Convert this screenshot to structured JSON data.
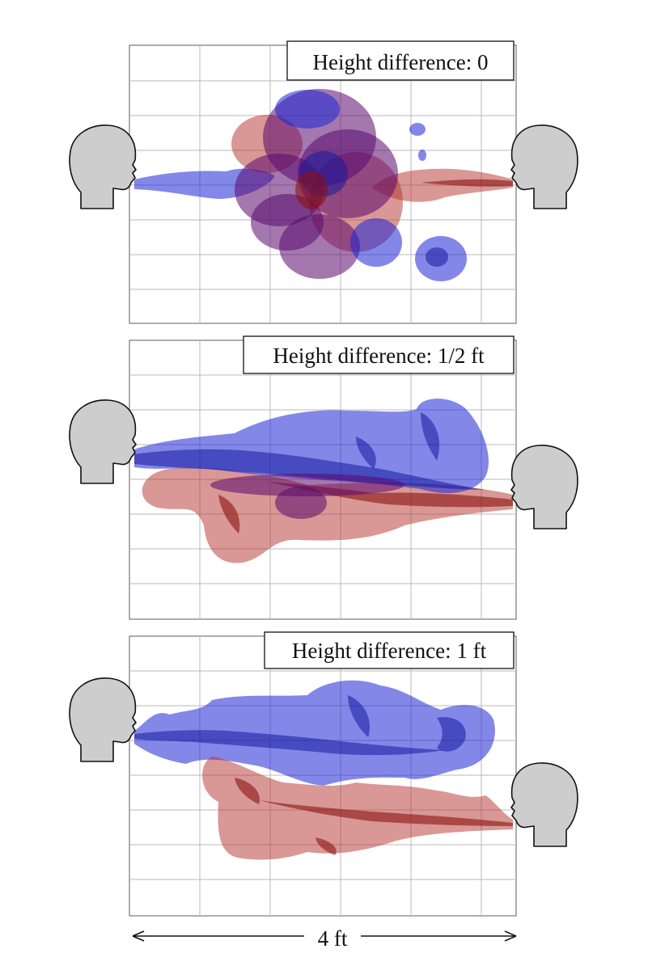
{
  "panels": [
    {
      "label": "Height difference: 0"
    },
    {
      "label": "Height difference: 1/2 ft"
    },
    {
      "label": "Height difference: 1 ft"
    }
  ],
  "scale_label": "4 ft",
  "colors": {
    "left_person_jet": "#1e25d6",
    "right_person_jet": "#b3322c",
    "mixed_region": "#5a0a6e",
    "head_fill": "#cdcdcd"
  },
  "icons": [
    "head-profile-left-icon",
    "head-profile-right-icon",
    "double-arrow-icon"
  ]
}
